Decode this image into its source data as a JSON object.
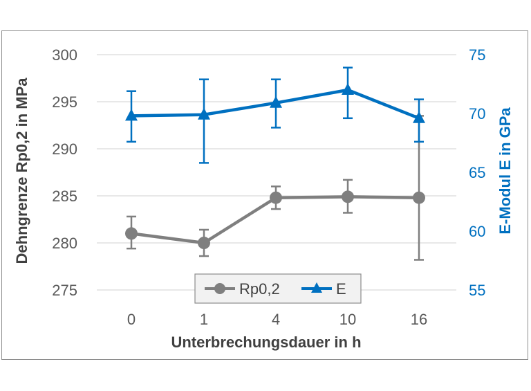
{
  "chart_data": {
    "type": "line",
    "categories": [
      "0",
      "1",
      "4",
      "10",
      "16"
    ],
    "xlabel": "Unterbrechungsdauer in h",
    "y_left": {
      "label": "Dehngrenze Rp0,2 in MPa",
      "range": [
        275,
        300
      ],
      "ticks": [
        275,
        280,
        285,
        290,
        295,
        300
      ]
    },
    "y_right": {
      "label": "E-Modul E in GPa",
      "range": [
        55,
        75
      ],
      "ticks": [
        55,
        60,
        65,
        70,
        75
      ]
    },
    "grid": true,
    "legend": "bottom-center",
    "series": [
      {
        "name": "Rp0,2",
        "axis": "left",
        "color": "#7f7f7f",
        "marker": "circle",
        "values": [
          281.0,
          280.0,
          284.8,
          284.9,
          284.8
        ],
        "err_low": [
          279.4,
          278.6,
          283.6,
          283.2,
          278.2
        ],
        "err_high": [
          282.8,
          281.4,
          286.0,
          286.7,
          293.5
        ]
      },
      {
        "name": "E",
        "axis": "right",
        "color": "#0070c0",
        "marker": "triangle",
        "values": [
          69.8,
          69.9,
          70.9,
          72.0,
          69.6
        ],
        "err_low": [
          67.6,
          65.8,
          68.8,
          69.6,
          67.6
        ],
        "err_high": [
          71.9,
          72.9,
          72.9,
          73.9,
          71.2
        ]
      }
    ]
  }
}
